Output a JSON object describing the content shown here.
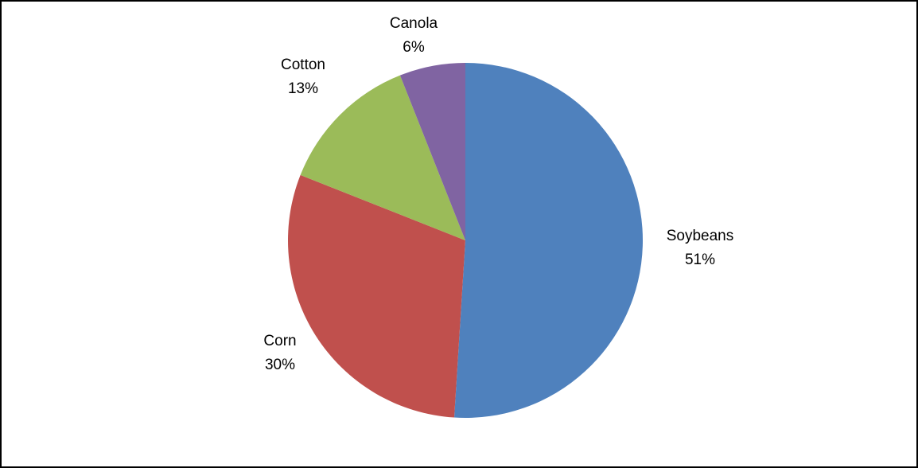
{
  "chart_data": {
    "type": "pie",
    "title": "",
    "legend": "none",
    "slices": [
      {
        "label": "Soybeans",
        "value": 51,
        "display": "51%",
        "color": "#4F81BD"
      },
      {
        "label": "Corn",
        "value": 30,
        "display": "30%",
        "color": "#C0504D"
      },
      {
        "label": "Cotton",
        "value": 13,
        "display": "13%",
        "color": "#9BBB59"
      },
      {
        "label": "Canola",
        "value": 6,
        "display": "6%",
        "color": "#8064A2"
      }
    ]
  }
}
